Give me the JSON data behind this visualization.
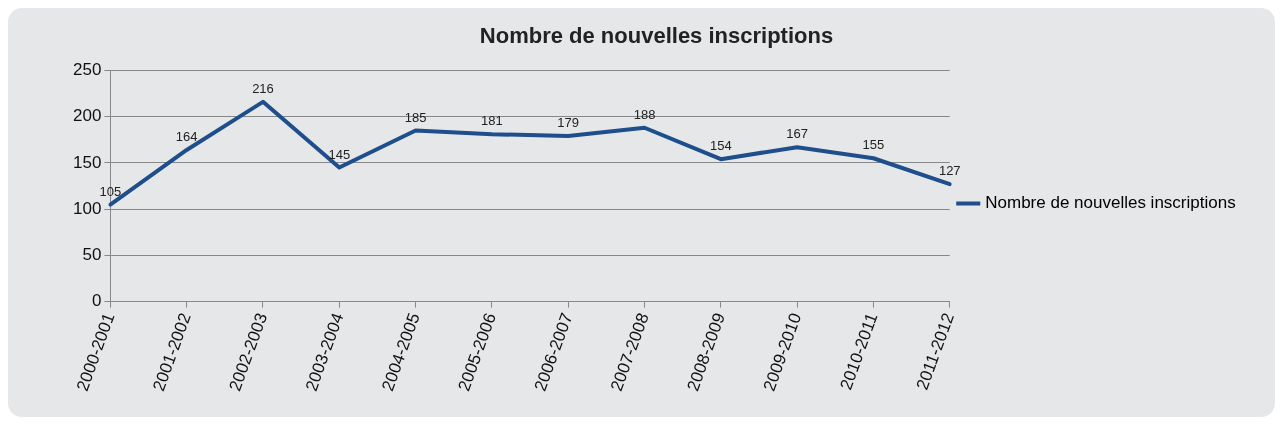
{
  "chart_data": {
    "type": "line",
    "title": "Nombre de nouvelles inscriptions",
    "categories": [
      "2000-2001",
      "2001-2002",
      "2002-2003",
      "2003-2004",
      "2004-2005",
      "2005-2006",
      "2006-2007",
      "2007-2008",
      "2008-2009",
      "2009-2010",
      "2010-2011",
      "2011-2012"
    ],
    "series": [
      {
        "name": "Nombre de nouvelles inscriptions",
        "color": "#1f4e8c",
        "values": [
          105,
          164,
          216,
          145,
          185,
          181,
          179,
          188,
          154,
          167,
          155,
          127
        ]
      }
    ],
    "ylim": [
      0,
      250
    ],
    "yticks": [
      0,
      50,
      100,
      150,
      200,
      250
    ],
    "grid": "y",
    "legend": "right",
    "marker": "none",
    "line_style": "solid",
    "data_labels": true
  }
}
